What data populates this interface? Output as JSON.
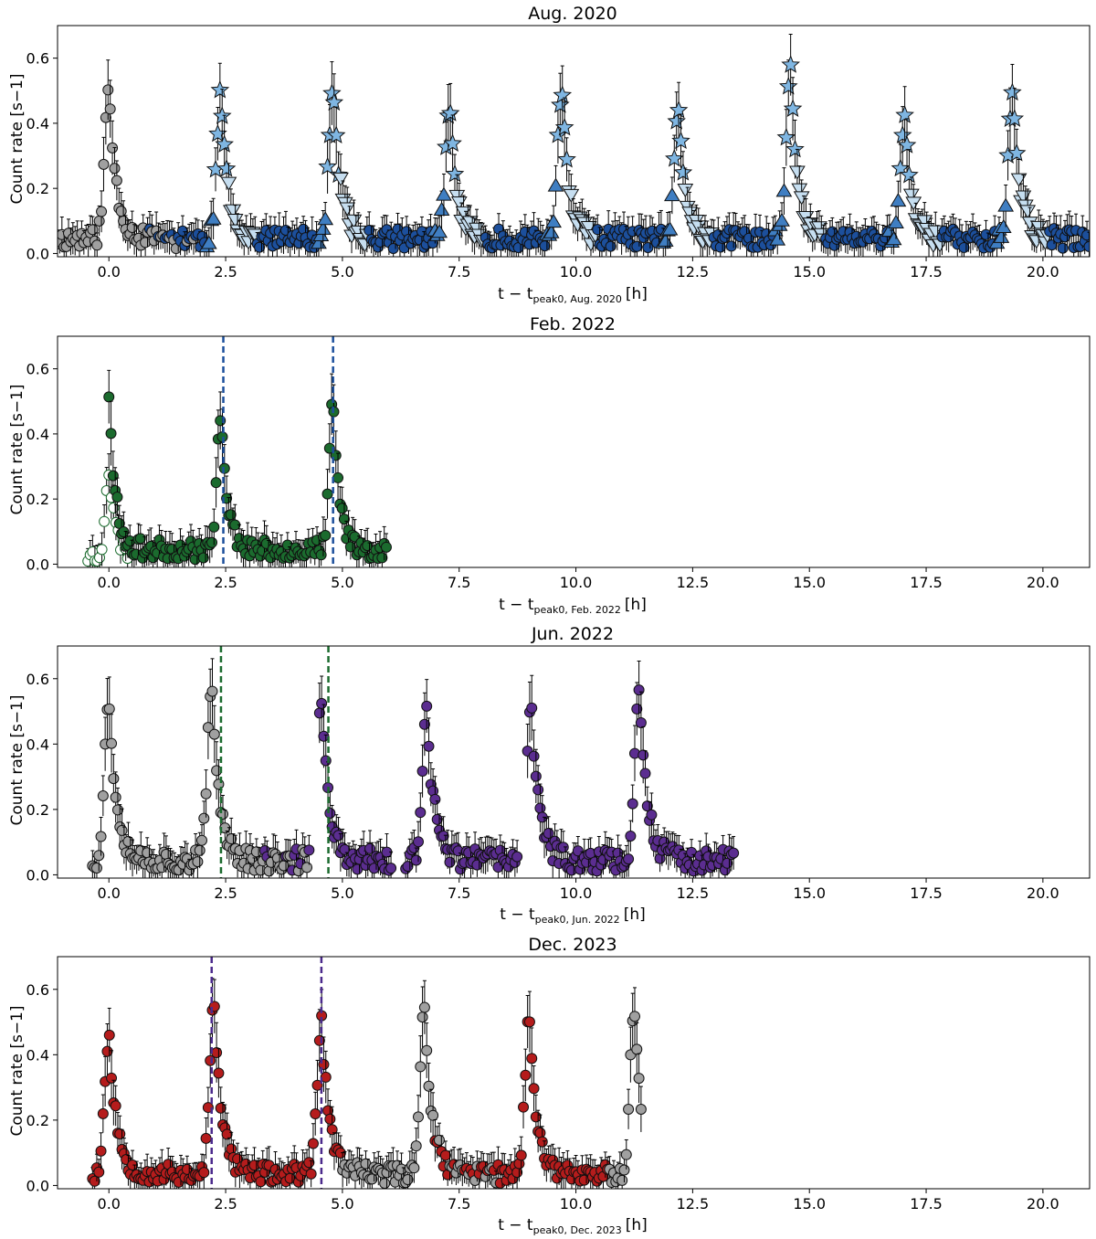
{
  "chart_data": [
    {
      "type": "scatter",
      "title": "Aug. 2020",
      "ylabel": "Count rate [s−1]",
      "xlabel_main": "t − t",
      "xlabel_sub": "peak0, Aug. 2020",
      "xlabel_unit": "[h]",
      "xlim": [
        -1.1,
        21.0
      ],
      "ylim": [
        -0.01,
        0.7
      ],
      "xticks": [
        "0.0",
        "2.5",
        "5.0",
        "7.5",
        "10.0",
        "12.5",
        "15.0",
        "17.5",
        "20.0"
      ],
      "yticks": [
        "0.0",
        "0.2",
        "0.4",
        "0.6"
      ],
      "gen": {
        "seed": 11,
        "start": -1.1,
        "end": 21.0,
        "step": 0.047,
        "peaks": [
          0,
          2.4,
          4.8,
          7.3,
          9.7,
          12.2,
          14.6,
          17.05,
          19.35
        ],
        "amps": [
          0.47,
          0.44,
          0.46,
          0.4,
          0.45,
          0.38,
          0.52,
          0.37,
          0.45
        ],
        "rise": 0.09,
        "decay": 0.16,
        "base": 0.045,
        "noise": 0.03,
        "gaps": [
          [
            0.0,
            0.0
          ]
        ],
        "segments": [
          {
            "until": 0.8,
            "color": "#a0a0a0"
          },
          {
            "until": 1.9,
            "color": "#a0a0a0",
            "alt": "#1c4f9c"
          },
          {
            "until": 99,
            "color": "#1c4f9c"
          }
        ],
        "phaseMarkers": true
      },
      "colors": {
        "circle": "#1c4f9c",
        "rise": "#3f7ec2",
        "peak": "#7fb6e2",
        "decay": "#c6def0",
        "grey": "#a0a0a0"
      },
      "vlines": []
    },
    {
      "type": "scatter",
      "title": "Feb. 2022",
      "ylabel": "Count rate [s−1]",
      "xlabel_main": "t − t",
      "xlabel_sub": "peak0, Feb. 2022",
      "xlabel_unit": "[h]",
      "xlim": [
        -1.1,
        21.0
      ],
      "ylim": [
        -0.01,
        0.7
      ],
      "xticks": [
        "0.0",
        "2.5",
        "5.0",
        "7.5",
        "10.0",
        "12.5",
        "15.0",
        "17.5",
        "20.0"
      ],
      "yticks": [
        "0.0",
        "0.2",
        "0.4",
        "0.6"
      ],
      "gen": {
        "seed": 23,
        "start": 0.0,
        "end": 5.95,
        "step": 0.045,
        "peaks": [
          0,
          2.4,
          4.8
        ],
        "amps": [
          0.48,
          0.43,
          0.45
        ],
        "rise": 0.08,
        "decay": 0.14,
        "base": 0.045,
        "noise": 0.03,
        "segments": [
          {
            "until": 99,
            "color": "#1b6b2e"
          }
        ],
        "hollow": {
          "start": -0.45,
          "end": 0.4,
          "step": 0.05,
          "color": "#1b6b2e"
        }
      },
      "vlines": [
        {
          "x": 2.45,
          "color": "#1c4f9c"
        },
        {
          "x": 4.8,
          "color": "#1c4f9c"
        }
      ]
    },
    {
      "type": "scatter",
      "title": "Jun. 2022",
      "ylabel": "Count rate [s−1]",
      "xlabel_main": "t − t",
      "xlabel_sub": "peak0, Jun. 2022",
      "xlabel_unit": "[h]",
      "xlim": [
        -1.1,
        21.0
      ],
      "ylim": [
        -0.01,
        0.7
      ],
      "xticks": [
        "0.0",
        "2.5",
        "5.0",
        "7.5",
        "10.0",
        "12.5",
        "15.0",
        "17.5",
        "20.0"
      ],
      "yticks": [
        "0.0",
        "0.2",
        "0.4",
        "0.6"
      ],
      "gen": {
        "seed": 37,
        "start": -0.35,
        "end": 13.4,
        "step": 0.045,
        "peaks": [
          0,
          2.2,
          4.55,
          6.8,
          9.05,
          11.35
        ],
        "amps": [
          0.5,
          0.53,
          0.5,
          0.45,
          0.47,
          0.55
        ],
        "rise": 0.09,
        "decay": 0.17,
        "base": 0.045,
        "noise": 0.035,
        "gaps": [
          [
            4.3,
            4.5
          ],
          [
            6.05,
            6.35
          ],
          [
            8.75,
            8.95
          ]
        ],
        "segments": [
          {
            "until": 3.3,
            "color": "#a0a0a0"
          },
          {
            "until": 4.25,
            "color": "#a0a0a0",
            "alt": "#5b2d90"
          },
          {
            "until": 99,
            "color": "#5b2d90"
          }
        ]
      },
      "vlines": [
        {
          "x": 2.4,
          "color": "#1b6b2e"
        },
        {
          "x": 4.7,
          "color": "#1b6b2e"
        }
      ]
    },
    {
      "type": "scatter",
      "title": "Dec. 2023",
      "ylabel": "Count rate [s−1]",
      "xlabel_main": "t − t",
      "xlabel_sub": "peak0, Dec. 2023",
      "xlabel_unit": "[h]",
      "xlim": [
        -1.1,
        21.0
      ],
      "ylim": [
        -0.01,
        0.7
      ],
      "xticks": [
        "0.0",
        "2.5",
        "5.0",
        "7.5",
        "10.0",
        "12.5",
        "15.0",
        "17.5",
        "20.0"
      ],
      "yticks": [
        "0.0",
        "0.2",
        "0.4",
        "0.6"
      ],
      "gen": {
        "seed": 53,
        "start": -0.35,
        "end": 11.4,
        "step": 0.045,
        "peaks": [
          0,
          2.25,
          4.55,
          6.75,
          9.0,
          11.25
        ],
        "amps": [
          0.43,
          0.52,
          0.47,
          0.52,
          0.47,
          0.52
        ],
        "rise": 0.09,
        "decay": 0.17,
        "base": 0.035,
        "noise": 0.03,
        "gaps": [
          [
            2.95,
            2.95
          ]
        ],
        "segments": [
          {
            "until": 5.0,
            "color": "#b51c1c"
          },
          {
            "until": 6.95,
            "color": "#a0a0a0"
          },
          {
            "until": 7.3,
            "color": "#a0a0a0",
            "alt": "#b51c1c"
          },
          {
            "until": 8.3,
            "color": "#b51c1c",
            "alt": "#a0a0a0"
          },
          {
            "until": 10.7,
            "color": "#b51c1c"
          },
          {
            "until": 99,
            "color": "#a0a0a0"
          }
        ]
      },
      "vlines": [
        {
          "x": 2.2,
          "color": "#4b2a8c"
        },
        {
          "x": 4.55,
          "color": "#4b2a8c"
        }
      ]
    }
  ]
}
